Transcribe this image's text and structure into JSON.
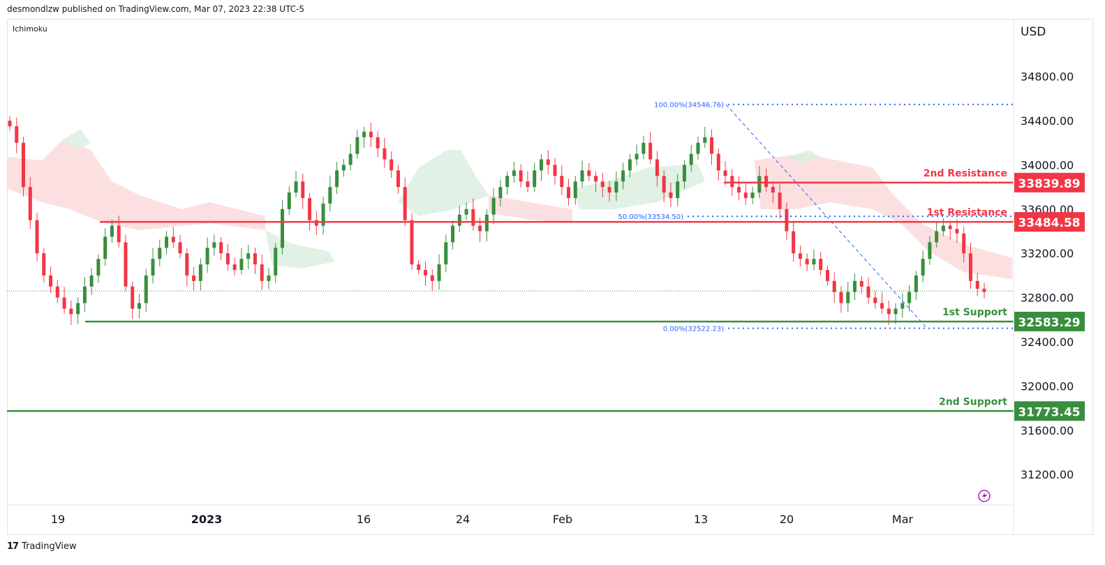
{
  "header": {
    "publisher_line": "desmondlzw published on TradingView.com, Mar 07, 2023 22:38 UTC-5"
  },
  "indicator": {
    "name": "Ichimoku"
  },
  "footer": {
    "brand": "TradingView"
  },
  "colors": {
    "resistance": "#f23645",
    "support": "#388e3c",
    "fib": "#2962ff",
    "up_candle": "#388e3c",
    "down_candle": "#f23645",
    "cloud_red": "#fbd9da",
    "cloud_green": "#dcefe0"
  },
  "chart_data": {
    "type": "candlestick",
    "currency": "USD",
    "ylim": [
      30800,
      35100
    ],
    "y_ticks": [
      31200,
      31600,
      32000,
      32400,
      32800,
      33200,
      33600,
      34000,
      34400,
      34800
    ],
    "y_tick_labels": [
      "31200.00",
      "31600.00",
      "32000.00",
      "32400.00",
      "32800.00",
      "33200.00",
      "33600.00",
      "34000.00",
      "34400.00",
      "34800.00"
    ],
    "x_ticks": [
      "19",
      "2023",
      "16",
      "24",
      "Feb",
      "13",
      "20",
      "Mar"
    ],
    "levels": [
      {
        "name": "2nd Resistance",
        "value": 33839.89,
        "label": "33839.89",
        "kind": "resistance"
      },
      {
        "name": "1st Resistance",
        "value": 33484.58,
        "label": "33484.58",
        "kind": "resistance"
      },
      {
        "name": "1st Support",
        "value": 32583.29,
        "label": "32583.29",
        "kind": "support"
      },
      {
        "name": "2nd Support",
        "value": 31773.45,
        "label": "31773.45",
        "kind": "support"
      }
    ],
    "fibonacci": [
      {
        "label": "100.00%(34546.76)",
        "value": 34546.76
      },
      {
        "label": "50.00%(33534.50)",
        "value": 33534.5
      },
      {
        "label": "0.00%(32522.23)",
        "value": 32522.23
      }
    ],
    "current_price": 32860,
    "close_series": [
      34350,
      34200,
      33800,
      33500,
      33200,
      33000,
      32900,
      32800,
      32700,
      32650,
      32750,
      32900,
      33000,
      33150,
      33350,
      33450,
      33300,
      32900,
      32700,
      32750,
      33000,
      33150,
      33250,
      33350,
      33300,
      33200,
      33000,
      32950,
      33100,
      33250,
      33300,
      33200,
      33100,
      33050,
      33150,
      33200,
      33100,
      32950,
      33000,
      33250,
      33600,
      33750,
      33850,
      33700,
      33500,
      33450,
      33650,
      33800,
      33950,
      34000,
      34100,
      34250,
      34300,
      34250,
      34150,
      34050,
      33950,
      33800,
      33500,
      33100,
      33050,
      33000,
      32950,
      33100,
      33300,
      33450,
      33550,
      33600,
      33450,
      33400,
      33550,
      33700,
      33800,
      33900,
      33950,
      33850,
      33800,
      33950,
      34050,
      34000,
      33900,
      33800,
      33700,
      33850,
      33950,
      33900,
      33850,
      33800,
      33750,
      33850,
      33950,
      34050,
      34100,
      34200,
      34050,
      33900,
      33750,
      33700,
      33850,
      34000,
      34100,
      34200,
      34250,
      34100,
      33950,
      33900,
      33800,
      33750,
      33700,
      33750,
      33900,
      33800,
      33750,
      33600,
      33400,
      33200,
      33150,
      33100,
      33150,
      33050,
      32950,
      32850,
      32750,
      32850,
      32950,
      32900,
      32800,
      32750,
      32700,
      32650,
      32700,
      32750,
      32850,
      33000,
      33150,
      33300,
      33400,
      33450,
      33420,
      33380,
      33200,
      32950,
      32880,
      32850
    ]
  }
}
